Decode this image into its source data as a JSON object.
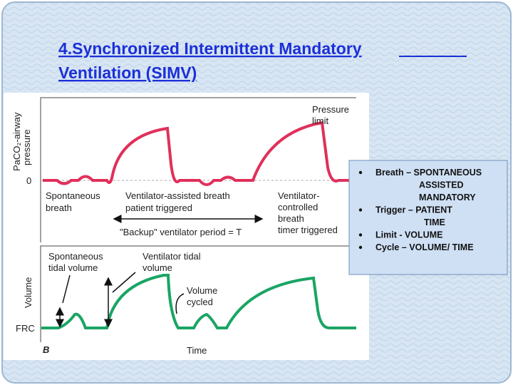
{
  "slide": {
    "title_lines": [
      "4.Synchronized Intermittent Mandatory",
      "Ventilation (SIMV)"
    ],
    "figure": {
      "top_panel": {
        "y_label_lines": [
          "PaCO₂-airway",
          "pressure"
        ],
        "zero_label": "0",
        "pressure_limit_lines": [
          "Pressure",
          "limit"
        ],
        "spontaneous_lines": [
          "Spontaneous",
          "breath"
        ],
        "assisted_lines": [
          "Ventilator-assisted breath",
          "patient triggered"
        ],
        "controlled_lines": [
          "Ventilator-",
          "controlled",
          "breath",
          "timer triggered"
        ],
        "backup": "\"Backup\" ventilator period = T"
      },
      "bottom_panel": {
        "y_label": "Volume",
        "frc_label": "FRC",
        "spont_tidal_lines": [
          "Spontaneous",
          "tidal volume"
        ],
        "vent_tidal_lines": [
          "Ventilator tidal",
          "volume"
        ],
        "volume_cycled_lines": [
          "Volume",
          "cycled"
        ],
        "panel_letter": "B",
        "x_label": "Time"
      }
    },
    "bullets": [
      {
        "lines": [
          "Breath – SPONTANEOUS",
          "ASSISTED",
          "MANDATORY"
        ]
      },
      {
        "lines": [
          "Trigger – PATIENT",
          "TIME"
        ]
      },
      {
        "lines": [
          "Limit  - VOLUME"
        ]
      },
      {
        "lines": [
          "Cycle –  VOLUME/ TIME"
        ]
      }
    ]
  }
}
